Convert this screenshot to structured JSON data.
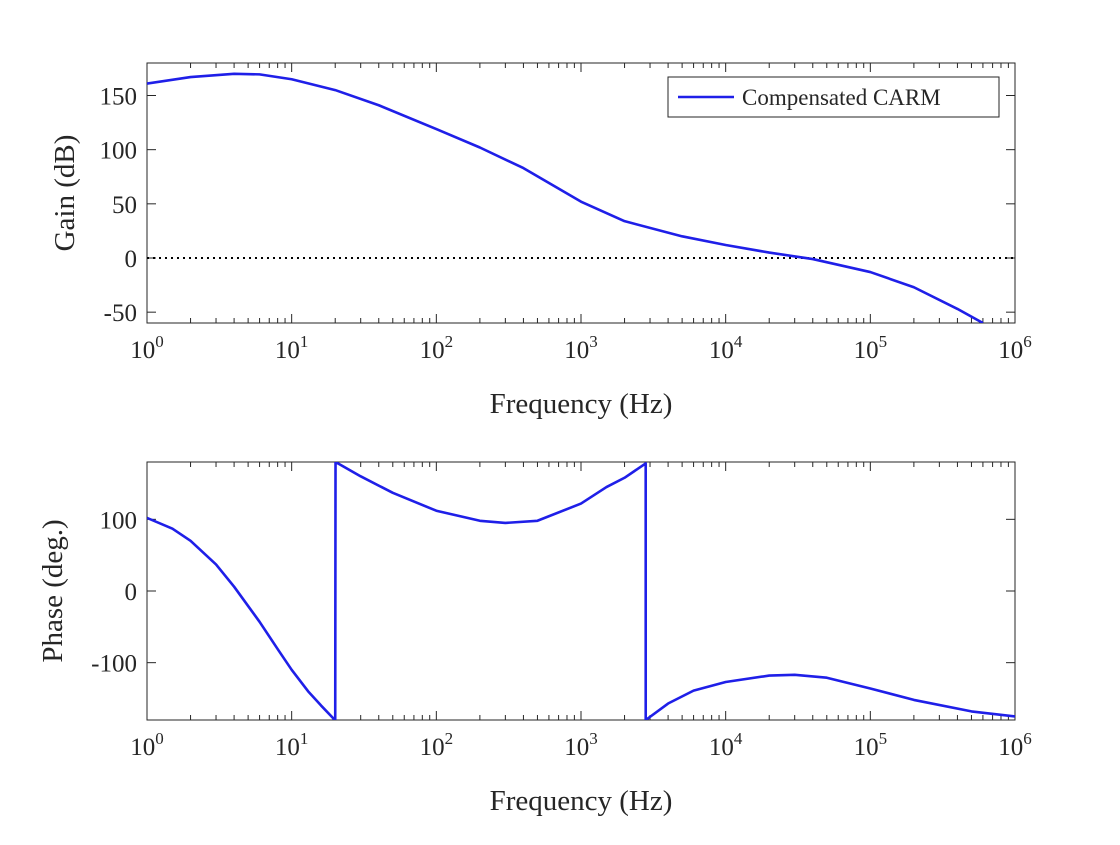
{
  "chart_data": [
    {
      "type": "line",
      "panel": "gain",
      "title": "",
      "xlabel": "Frequency (Hz)",
      "ylabel": "Gain (dB)",
      "xscale": "log",
      "xlim": [
        1,
        1000000
      ],
      "ylim": [
        -60,
        180
      ],
      "grid": false,
      "xticks": [
        {
          "base": "10",
          "exp": "0"
        },
        {
          "base": "10",
          "exp": "1"
        },
        {
          "base": "10",
          "exp": "2"
        },
        {
          "base": "10",
          "exp": "3"
        },
        {
          "base": "10",
          "exp": "4"
        },
        {
          "base": "10",
          "exp": "5"
        },
        {
          "base": "10",
          "exp": "6"
        }
      ],
      "yticks": [
        "-50",
        "0",
        "50",
        "100",
        "150"
      ],
      "reference_line": {
        "y": 0,
        "style": "dotted",
        "color": "#000000"
      },
      "legend": {
        "position": "top-right",
        "entries": [
          "Compensated CARM"
        ]
      },
      "series": [
        {
          "name": "Compensated CARM",
          "color": "#1f1fe8",
          "x": [
            1,
            2,
            4,
            6,
            10,
            20,
            40,
            100,
            200,
            400,
            1000,
            2000,
            5000,
            10000,
            20000,
            40000,
            100000,
            200000,
            400000,
            600000
          ],
          "y": [
            161,
            167,
            170,
            169.5,
            165,
            155,
            141,
            119,
            102,
            83,
            52,
            34,
            20,
            12,
            5,
            -1,
            -13,
            -27,
            -47,
            -60
          ]
        }
      ]
    },
    {
      "type": "line",
      "panel": "phase",
      "title": "",
      "xlabel": "Frequency (Hz)",
      "ylabel": "Phase (deg.)",
      "xscale": "log",
      "xlim": [
        1,
        1000000
      ],
      "ylim": [
        -180,
        180
      ],
      "grid": false,
      "xticks": [
        {
          "base": "10",
          "exp": "0"
        },
        {
          "base": "10",
          "exp": "1"
        },
        {
          "base": "10",
          "exp": "2"
        },
        {
          "base": "10",
          "exp": "3"
        },
        {
          "base": "10",
          "exp": "4"
        },
        {
          "base": "10",
          "exp": "5"
        },
        {
          "base": "10",
          "exp": "6"
        }
      ],
      "yticks": [
        "-100",
        "0",
        "100"
      ],
      "series": [
        {
          "name": "Compensated CARM",
          "color": "#1f1fe8",
          "x": [
            1,
            1.5,
            2,
            3,
            4,
            6,
            8,
            10,
            13,
            16,
            19.9,
            20,
            20.1,
            30,
            50,
            100,
            200,
            300,
            500,
            1000,
            1500,
            2000,
            2800,
            2801,
            4000,
            6000,
            10000,
            20000,
            30000,
            50000,
            100000,
            200000,
            500000,
            1000000
          ],
          "y": [
            102,
            87,
            70,
            37,
            6,
            -43,
            -81,
            -110,
            -140,
            -160,
            -180,
            -180,
            180,
            160,
            137,
            112,
            98,
            95,
            98,
            122,
            145,
            158,
            178,
            -180,
            -157,
            -139,
            -127,
            -118,
            -117,
            -121,
            -136,
            -152,
            -168,
            -175
          ]
        }
      ]
    }
  ]
}
